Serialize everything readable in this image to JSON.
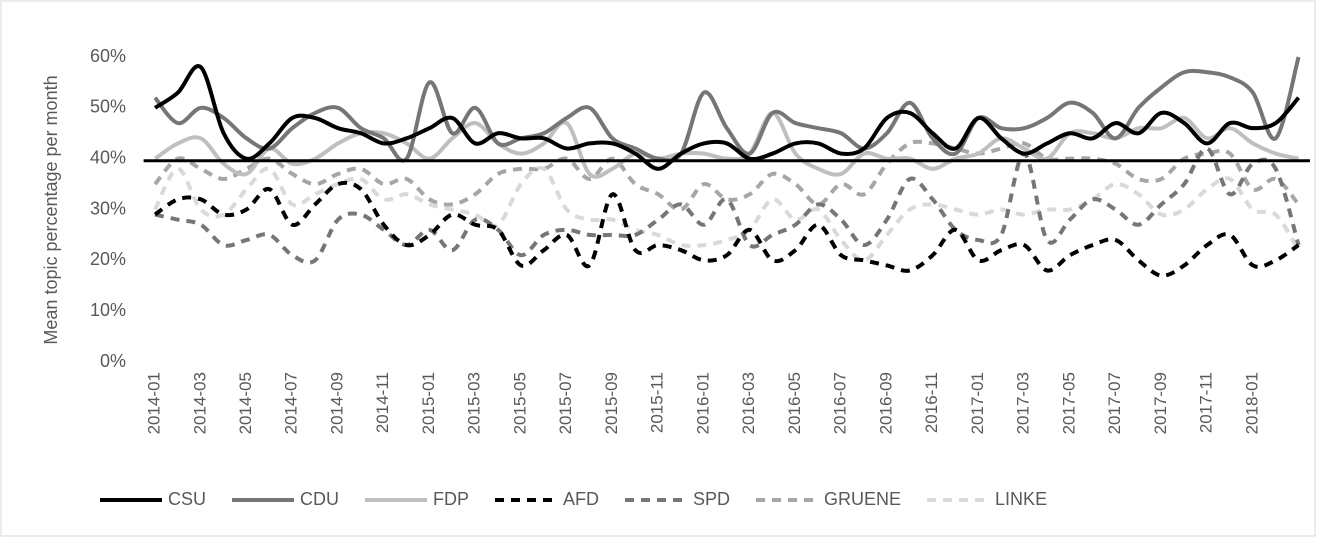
{
  "chart_data": {
    "type": "line",
    "y_label": "Mean topic percentage per month",
    "categories": [
      "2014-01",
      null,
      "2014-03",
      null,
      "2014-05",
      null,
      "2014-07",
      null,
      "2014-09",
      null,
      "2014-11",
      null,
      "2015-01",
      null,
      "2015-03",
      null,
      "2015-05",
      null,
      "2015-07",
      null,
      "2015-09",
      null,
      "2015-11",
      null,
      "2016-01",
      null,
      "2016-03",
      null,
      "2016-05",
      null,
      "2016-07",
      null,
      "2016-09",
      null,
      "2016-11",
      null,
      "2017-01",
      null,
      "2017-03",
      null,
      "2017-05",
      null,
      "2017-07",
      null,
      "2017-09",
      null,
      "2017-11",
      null,
      "2018-01",
      null,
      null
    ],
    "ylim": [
      0,
      60
    ],
    "yticks": [
      {
        "value": 0,
        "label": "0%"
      },
      {
        "value": 10,
        "label": "10%"
      },
      {
        "value": 20,
        "label": "20%"
      },
      {
        "value": 30,
        "label": "30%"
      },
      {
        "value": 40,
        "label": "40%"
      },
      {
        "value": 50,
        "label": "50%"
      },
      {
        "value": 60,
        "label": "60%"
      }
    ],
    "grid": false,
    "reference_line": 39.6,
    "legend": "bottom",
    "series": [
      {
        "name": "CSU",
        "color": "#000000",
        "dashed": false,
        "values": [
          50,
          53,
          58,
          45,
          40,
          43,
          48,
          48,
          46,
          45,
          43,
          44,
          46,
          48,
          43,
          45,
          44,
          44,
          42,
          43,
          43,
          41,
          38,
          41,
          43,
          43,
          40,
          41,
          43,
          43,
          41,
          42,
          48,
          49,
          45,
          42,
          48,
          44,
          41,
          43,
          45,
          44,
          47,
          45,
          49,
          47,
          43,
          47,
          46,
          47,
          52
        ]
      },
      {
        "name": "CDU",
        "color": "#767676",
        "dashed": false,
        "values": [
          52,
          47,
          50,
          48,
          44,
          42,
          46,
          49,
          50,
          46,
          44,
          40,
          55,
          45,
          50,
          43,
          44,
          45,
          48,
          50,
          44,
          42,
          40,
          41,
          53,
          46,
          41,
          49,
          47,
          46,
          45,
          42,
          45,
          51,
          44,
          41,
          48,
          46,
          46,
          48,
          51,
          49,
          44,
          50,
          54,
          57,
          57,
          56,
          53,
          44,
          60
        ]
      },
      {
        "name": "FDP",
        "color": "#bfbfbf",
        "dashed": false,
        "values": [
          40,
          43,
          44,
          39,
          37,
          42,
          39,
          40,
          43,
          45,
          45,
          43,
          40,
          44,
          47,
          43,
          41,
          43,
          47,
          37,
          38,
          41,
          40,
          41,
          41,
          40,
          41,
          49,
          41,
          38,
          37,
          41,
          40,
          40,
          38,
          40,
          41,
          44,
          42,
          40,
          45,
          45,
          44,
          46,
          46,
          48,
          44,
          46,
          43,
          41,
          40
        ]
      },
      {
        "name": "AFD",
        "color": "#000000",
        "dashed": true,
        "values": [
          29,
          32,
          32,
          29,
          30,
          34,
          27,
          31,
          35,
          34,
          27,
          23,
          25,
          29,
          27,
          26,
          19,
          22,
          25,
          19,
          33,
          22,
          23,
          22,
          20,
          21,
          26,
          20,
          22,
          27,
          21,
          20,
          19,
          18,
          21,
          26,
          20,
          22,
          23,
          18,
          21,
          23,
          24,
          20,
          17,
          19,
          23,
          25,
          19,
          20,
          23
        ]
      },
      {
        "name": "SPD",
        "color": "#767676",
        "dashed": true,
        "values": [
          29,
          28,
          27,
          23,
          24,
          25,
          21,
          20,
          28,
          29,
          26,
          23,
          26,
          22,
          28,
          26,
          21,
          25,
          26,
          25,
          25,
          25,
          28,
          31,
          27,
          32,
          23,
          25,
          27,
          31,
          28,
          23,
          28,
          36,
          32,
          26,
          24,
          25,
          41,
          24,
          28,
          32,
          30,
          27,
          31,
          35,
          42,
          33,
          39,
          38,
          23
        ]
      },
      {
        "name": "GRUENE",
        "color": "#a6a6a6",
        "dashed": true,
        "values": [
          35,
          40,
          38,
          36,
          38,
          40,
          37,
          35,
          37,
          38,
          35,
          36,
          32,
          31,
          33,
          37,
          38,
          38,
          40,
          36,
          40,
          35,
          33,
          30,
          35,
          32,
          33,
          37,
          35,
          31,
          35,
          33,
          39,
          43,
          43,
          42,
          41,
          42,
          43,
          40,
          40,
          40,
          39,
          36,
          36,
          40,
          41,
          41,
          34,
          36,
          31
        ]
      },
      {
        "name": "LINKE",
        "color": "#d9d9d9",
        "dashed": true,
        "values": [
          30,
          38,
          30,
          29,
          34,
          38,
          31,
          33,
          35,
          36,
          32,
          33,
          31,
          30,
          29,
          27,
          35,
          38,
          30,
          28,
          28,
          26,
          25,
          23,
          23,
          24,
          26,
          32,
          28,
          30,
          24,
          20,
          25,
          30,
          31,
          30,
          29,
          30,
          29,
          30,
          30,
          32,
          35,
          33,
          29,
          30,
          34,
          36,
          30,
          29,
          22
        ]
      }
    ]
  }
}
